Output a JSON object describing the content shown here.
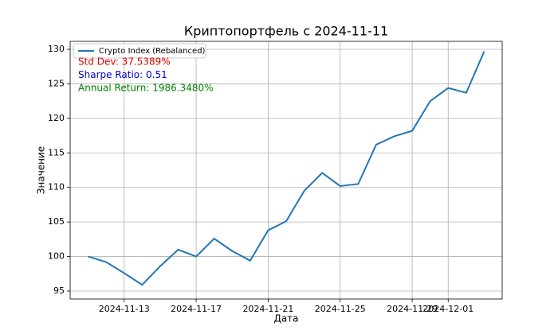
{
  "chart_data": {
    "type": "line",
    "title": "Криптопортфель с 2024-11-11",
    "xlabel": "Дата",
    "ylabel": "Значение",
    "x": [
      "2024-11-11",
      "2024-11-12",
      "2024-11-13",
      "2024-11-14",
      "2024-11-15",
      "2024-11-16",
      "2024-11-17",
      "2024-11-18",
      "2024-11-19",
      "2024-11-20",
      "2024-11-21",
      "2024-11-22",
      "2024-11-23",
      "2024-11-24",
      "2024-11-25",
      "2024-11-26",
      "2024-11-27",
      "2024-11-28",
      "2024-11-29",
      "2024-11-30",
      "2024-12-01",
      "2024-12-02",
      "2024-12-03"
    ],
    "series": [
      {
        "name": "Crypto Index (Rebalanced)",
        "color": "#1f77b4",
        "values": [
          100,
          99.2,
          97.6,
          95.9,
          98.6,
          101.0,
          100.0,
          102.6,
          100.8,
          99.4,
          103.8,
          105.1,
          109.5,
          112.1,
          110.2,
          110.5,
          116.2,
          117.4,
          118.2,
          122.5,
          124.4,
          123.7,
          129.7
        ]
      }
    ],
    "xlim": [
      "2024-11-10",
      "2024-12-04"
    ],
    "xticks": [
      "2024-11-13",
      "2024-11-17",
      "2024-11-21",
      "2024-11-25",
      "2024-11-29",
      "2024-12-01"
    ],
    "ylim": [
      93.85,
      131.15
    ],
    "yticks": [
      95,
      100,
      105,
      110,
      115,
      120,
      125,
      130
    ],
    "grid": true,
    "legend": "upper left",
    "annotations": [
      {
        "text": "Std Dev: 37.5389%",
        "color": "#dd0000"
      },
      {
        "text": "Sharpe Ratio: 0.51",
        "color": "#0000cc"
      },
      {
        "text": "Annual Return: 1986.3480%",
        "color": "#008000"
      }
    ]
  }
}
